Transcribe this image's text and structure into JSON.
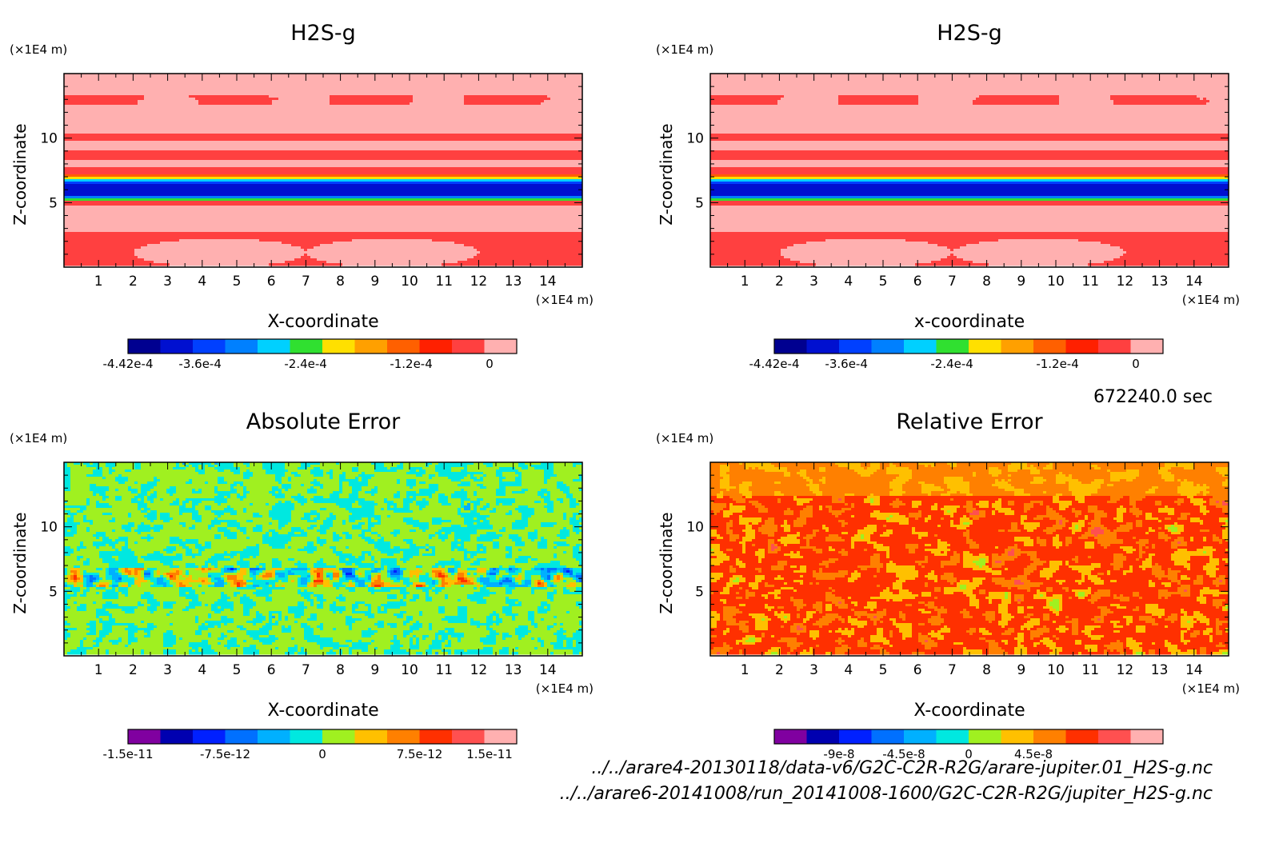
{
  "chart_data": [
    {
      "type": "heatmap",
      "title": "H2S-g",
      "xlabel": "X-coordinate",
      "ylabel": "Z-coordinate",
      "x_unit": "(×1E4 m)",
      "y_unit": "(×1E4 m)",
      "xticks": [
        "1",
        "2",
        "3",
        "4",
        "5",
        "6",
        "7",
        "8",
        "9",
        "10",
        "11",
        "12",
        "13",
        "14"
      ],
      "yticks": [
        "5",
        "10"
      ],
      "xlim": [
        0,
        15
      ],
      "ylim": [
        0,
        15
      ],
      "pattern": "band",
      "colorbar": {
        "colors": [
          "#000090",
          "#0010d0",
          "#0040ff",
          "#0080ff",
          "#00d0ff",
          "#30e030",
          "#ffe000",
          "#ffa000",
          "#ff6000",
          "#ff2000",
          "#ff4040",
          "#ffb0b0"
        ],
        "labels": [
          "-4.42e-4",
          "-3.6e-4",
          "-2.4e-4",
          "-1.2e-4",
          "0"
        ],
        "label_values": [
          -0.000442,
          -0.00036,
          -0.00024,
          -0.00012,
          0
        ],
        "range": [
          -0.000442,
          0
        ]
      }
    },
    {
      "type": "heatmap",
      "title": "H2S-g",
      "xlabel": "x-coordinate",
      "ylabel": "Z-coordinate",
      "x_unit": "(×1E4 m)",
      "y_unit": "(×1E4 m)",
      "xticks": [
        "1",
        "2",
        "3",
        "4",
        "5",
        "6",
        "7",
        "8",
        "9",
        "10",
        "11",
        "12",
        "13",
        "14"
      ],
      "yticks": [
        "5",
        "10"
      ],
      "xlim": [
        0,
        15
      ],
      "ylim": [
        0,
        15
      ],
      "pattern": "band",
      "colorbar": {
        "colors": [
          "#000090",
          "#0010d0",
          "#0040ff",
          "#0080ff",
          "#00d0ff",
          "#30e030",
          "#ffe000",
          "#ffa000",
          "#ff6000",
          "#ff2000",
          "#ff4040",
          "#ffb0b0"
        ],
        "labels": [
          "-4.42e-4",
          "-3.6e-4",
          "-2.4e-4",
          "-1.2e-4",
          "0"
        ],
        "label_values": [
          -0.000442,
          -0.00036,
          -0.00024,
          -0.00012,
          0
        ],
        "range": [
          -0.000442,
          0
        ]
      }
    },
    {
      "type": "heatmap",
      "title": "Absolute Error",
      "xlabel": "X-coordinate",
      "ylabel": "Z-coordinate",
      "x_unit": "(×1E4 m)",
      "y_unit": "(×1E4 m)",
      "xticks": [
        "1",
        "2",
        "3",
        "4",
        "5",
        "6",
        "7",
        "8",
        "9",
        "10",
        "11",
        "12",
        "13",
        "14"
      ],
      "yticks": [
        "5",
        "10"
      ],
      "xlim": [
        0,
        15
      ],
      "ylim": [
        0,
        15
      ],
      "pattern": "abs",
      "colorbar": {
        "colors": [
          "#8000a0",
          "#0000b0",
          "#0020ff",
          "#0070ff",
          "#00b0ff",
          "#00e8e0",
          "#a0f020",
          "#ffc000",
          "#ff8000",
          "#ff3000",
          "#ff5050",
          "#ffb0b0"
        ],
        "labels": [
          "-1.5e-11",
          "-7.5e-12",
          "0",
          "7.5e-12",
          "1.5e-11"
        ],
        "label_values": [
          -1.5e-11,
          -7.5e-12,
          0,
          7.5e-12,
          1.5e-11
        ],
        "range": [
          -1.5e-11,
          1.5e-11
        ]
      }
    },
    {
      "type": "heatmap",
      "title": "Relative Error",
      "xlabel": "X-coordinate",
      "ylabel": "Z-coordinate",
      "x_unit": "(×1E4 m)",
      "y_unit": "(×1E4 m)",
      "xticks": [
        "1",
        "2",
        "3",
        "4",
        "5",
        "6",
        "7",
        "8",
        "9",
        "10",
        "11",
        "12",
        "13",
        "14"
      ],
      "yticks": [
        "5",
        "10"
      ],
      "xlim": [
        0,
        15
      ],
      "ylim": [
        0,
        15
      ],
      "pattern": "rel",
      "colorbar": {
        "colors": [
          "#8000a0",
          "#0000b0",
          "#0020ff",
          "#0070ff",
          "#00b0ff",
          "#00e8e0",
          "#a0f020",
          "#ffc000",
          "#ff8000",
          "#ff3000",
          "#ff5050",
          "#ffb0b0"
        ],
        "labels": [
          "-9e-8",
          "-4.5e-8",
          "0",
          "4.5e-8"
        ],
        "label_values": [
          -9e-08,
          -4.5e-08,
          0,
          4.5e-08
        ],
        "range": [
          -1.35e-07,
          1.35e-07
        ]
      }
    }
  ],
  "timestamp": "672240.0 sec",
  "footer_lines": [
    "../../arare4-20130118/data-v6/G2C-C2R-R2G/arare-jupiter.01_H2S-g.nc",
    "../../arare6-20141008/run_20141008-1600/G2C-C2R-R2G/jupiter_H2S-g.nc"
  ]
}
